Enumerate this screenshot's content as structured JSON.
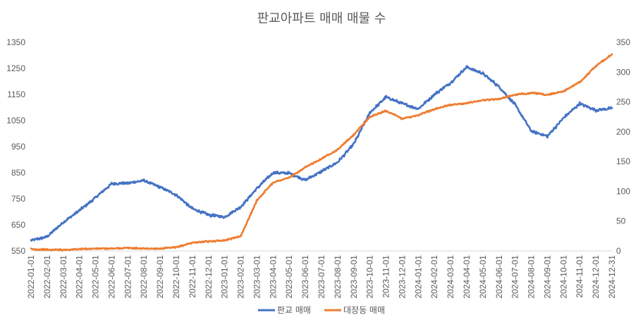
{
  "chart_data": {
    "type": "line",
    "title": "판교아파트 매매 매물 수",
    "xlabel": "",
    "ylabel": "",
    "y_left_ticks": [
      "550",
      "650",
      "750",
      "850",
      "950",
      "1050",
      "1150",
      "1250",
      "1350"
    ],
    "y_right_ticks": [
      "0",
      "50",
      "100",
      "150",
      "200",
      "250",
      "300",
      "350"
    ],
    "ylim_left": [
      550,
      1350
    ],
    "ylim_right": [
      0,
      350
    ],
    "grid": false,
    "legend": "bottom",
    "categories": [
      "2022-01-01",
      "2022-02-01",
      "2022-03-01",
      "2022-04-01",
      "2022-05-01",
      "2022-06-01",
      "2022-07-01",
      "2022-08-01",
      "2022-09-01",
      "2022-10-01",
      "2022-11-01",
      "2022-12-01",
      "2023-01-01",
      "2023-02-01",
      "2023-03-01",
      "2023-04-01",
      "2023-05-01",
      "2023-06-01",
      "2023-07-01",
      "2023-08-01",
      "2023-09-01",
      "2023-10-01",
      "2023-11-01",
      "2023-12-01",
      "2024-01-01",
      "2024-02-01",
      "2024-03-01",
      "2024-04-01",
      "2024-05-01",
      "2024-06-01",
      "2024-07-01",
      "2024-08-01",
      "2024-09-01",
      "2024-10-01",
      "2024-11-01",
      "2024-12-01",
      "2024-12-31"
    ],
    "series": [
      {
        "name": "판교 매매",
        "axis": "left",
        "color": "#4472C4",
        "values": [
          590,
          605,
          660,
          705,
          755,
          808,
          810,
          820,
          795,
          765,
          712,
          688,
          680,
          720,
          790,
          850,
          848,
          822,
          855,
          890,
          960,
          1080,
          1140,
          1115,
          1095,
          1150,
          1195,
          1255,
          1230,
          1180,
          1110,
          1010,
          990,
          1060,
          1115,
          1090,
          1097
        ]
      },
      {
        "name": "대장동 매매",
        "axis": "right",
        "color": "#ED7D31",
        "values": [
          3,
          2,
          2,
          3,
          4,
          4,
          5,
          4,
          4,
          6,
          14,
          16,
          18,
          25,
          85,
          115,
          123,
          140,
          155,
          170,
          195,
          225,
          235,
          222,
          228,
          238,
          245,
          248,
          253,
          255,
          262,
          265,
          262,
          268,
          283,
          310,
          330
        ]
      }
    ]
  }
}
